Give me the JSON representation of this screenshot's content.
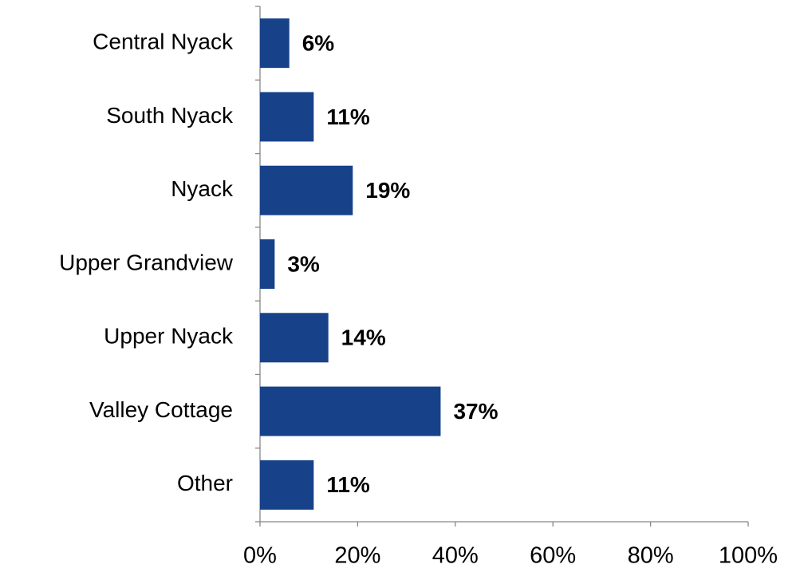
{
  "chart_data": {
    "type": "bar",
    "orientation": "horizontal",
    "categories": [
      "Central Nyack",
      "South Nyack",
      "Nyack",
      "Upper Grandview",
      "Upper Nyack",
      "Valley Cottage",
      "Other"
    ],
    "values": [
      6,
      11,
      19,
      3,
      14,
      37,
      11
    ],
    "value_labels": [
      "6%",
      "11%",
      "19%",
      "3%",
      "14%",
      "37%",
      "11%"
    ],
    "color": "#17428a",
    "xlim": [
      0,
      100
    ],
    "xticks": [
      {
        "value": 0,
        "label": "0%"
      },
      {
        "value": 20,
        "label": "20%"
      },
      {
        "value": 40,
        "label": "40%"
      },
      {
        "value": 60,
        "label": "60%"
      },
      {
        "value": 80,
        "label": "80%"
      },
      {
        "value": 100,
        "label": "100%"
      }
    ],
    "grid": false
  }
}
